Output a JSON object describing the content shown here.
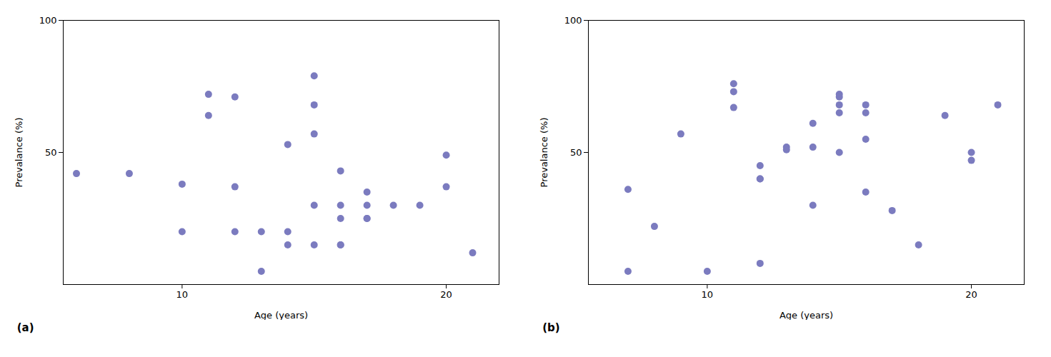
{
  "chart_data": [
    {
      "type": "scatter",
      "title": "(a)",
      "xlabel": "Age (years)",
      "ylabel": "Prevalance (%)",
      "x": [
        6,
        8,
        10,
        10,
        11,
        11,
        12,
        12,
        12,
        13,
        13,
        14,
        14,
        14,
        15,
        15,
        15,
        15,
        15,
        16,
        16,
        16,
        16,
        16,
        17,
        17,
        17,
        17,
        18,
        19,
        20,
        20,
        21
      ],
      "values": [
        42,
        42,
        20,
        38,
        64,
        72,
        71,
        37,
        20,
        20,
        5,
        53,
        15,
        20,
        79,
        68,
        57,
        30,
        15,
        43,
        30,
        25,
        15,
        15,
        35,
        30,
        25,
        25,
        30,
        30,
        49,
        37,
        12
      ],
      "color": "#7b7bbf",
      "xlim": [
        5.5,
        22
      ],
      "ylim": [
        0,
        100
      ],
      "xticks": [
        10,
        20
      ],
      "yticks": [
        50,
        100
      ],
      "grid": false
    },
    {
      "type": "scatter",
      "title": "(b)",
      "xlabel": "Age (years)",
      "ylabel": "Prevalance (%)",
      "x": [
        7,
        7,
        8,
        9,
        10,
        11,
        11,
        11,
        12,
        12,
        12,
        12,
        13,
        13,
        14,
        14,
        14,
        15,
        15,
        15,
        15,
        15,
        16,
        16,
        16,
        16,
        17,
        18,
        19,
        20,
        20,
        21
      ],
      "values": [
        36,
        5,
        22,
        57,
        5,
        73,
        76,
        67,
        45,
        40,
        40,
        8,
        52,
        51,
        61,
        52,
        30,
        72,
        71,
        68,
        65,
        50,
        68,
        65,
        55,
        35,
        28,
        15,
        64,
        50,
        47,
        68
      ],
      "color": "#7b7bbf",
      "xlim": [
        5.5,
        22
      ],
      "ylim": [
        0,
        100
      ],
      "xticks": [
        10,
        20
      ],
      "yticks": [
        50,
        100
      ],
      "grid": false
    }
  ]
}
